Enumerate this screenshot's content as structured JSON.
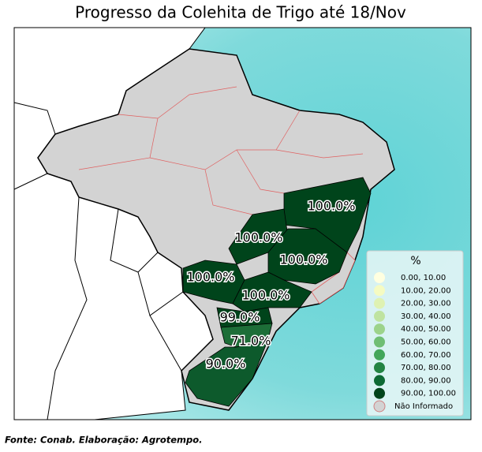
{
  "title": "Progresso da Colehita de Trigo até 18/Nov",
  "regions": [
    {
      "value": 100,
      "label": "100.0%",
      "color": "#00441b"
    },
    {
      "value": 100,
      "label": "100.0%",
      "color": "#00441b"
    },
    {
      "value": 100,
      "label": "100.0%",
      "color": "#00441b"
    },
    {
      "value": 100,
      "label": "100.0%",
      "color": "#00441b"
    },
    {
      "value": 100,
      "label": "100.0%",
      "color": "#00441b"
    },
    {
      "value": 99,
      "label": "99.0%",
      "color": "#00441b"
    },
    {
      "value": 71,
      "label": "71.0%",
      "color": "#1d6e38"
    },
    {
      "value": 90,
      "label": "90.0%",
      "color": "#0d5a2c"
    }
  ],
  "legend": {
    "title": "%",
    "items": [
      {
        "label": "0.00,  10.00",
        "color": "#ffffe0"
      },
      {
        "label": "10.00,  20.00",
        "color": "#f5fbc2"
      },
      {
        "label": "20.00,  30.00",
        "color": "#dff2b2"
      },
      {
        "label": "30.00,  40.00",
        "color": "#bfe3a0"
      },
      {
        "label": "40.00,  50.00",
        "color": "#9cd38b"
      },
      {
        "label": "50.00,  60.00",
        "color": "#6fbe74"
      },
      {
        "label": "60.00,  70.00",
        "color": "#42a65a"
      },
      {
        "label": "70.00,  80.00",
        "color": "#238443"
      },
      {
        "label": "80.00,  90.00",
        "color": "#0d6a34"
      },
      {
        "label": "90.00, 100.00",
        "color": "#00441b"
      },
      {
        "label": "Não Informado",
        "color": "#d3d3d3"
      }
    ]
  },
  "source": "Fonte: Conab. Elaboração: Agrotempo."
}
